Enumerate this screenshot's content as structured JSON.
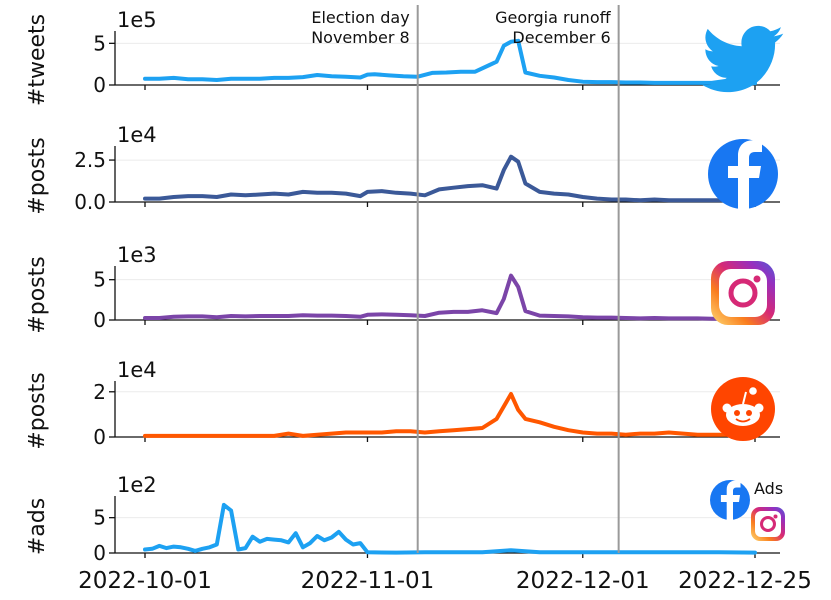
{
  "chart_data": {
    "type": "line",
    "x_range": [
      "2022-10-01",
      "2022-12-25"
    ],
    "x_ticks": [
      "2022-10-01",
      "2022-11-01",
      "2022-12-01",
      "2022-12-25"
    ],
    "events": [
      {
        "date": "2022-11-08",
        "label_line1": "Election day",
        "label_line2": "November 8",
        "label_align": "right"
      },
      {
        "date": "2022-12-06",
        "label_line1": "Georgia runoff",
        "label_line2": "December 6",
        "label_align": "right"
      }
    ],
    "line_color_default": "#1DA1F2",
    "panels": [
      {
        "id": "twitter",
        "ylabel": "#tweets",
        "multiplier": "1e5",
        "ylim": [
          0,
          6
        ],
        "yticks": [
          0,
          5
        ],
        "yticks_labels": [
          "0",
          "5"
        ],
        "color": "#1DA1F2",
        "icon": "twitter-bird-icon",
        "points": [
          [
            "2022-10-01",
            0.75
          ],
          [
            "2022-10-03",
            0.75
          ],
          [
            "2022-10-05",
            0.85
          ],
          [
            "2022-10-07",
            0.7
          ],
          [
            "2022-10-09",
            0.7
          ],
          [
            "2022-10-11",
            0.6
          ],
          [
            "2022-10-13",
            0.75
          ],
          [
            "2022-10-15",
            0.75
          ],
          [
            "2022-10-17",
            0.75
          ],
          [
            "2022-10-19",
            0.85
          ],
          [
            "2022-10-21",
            0.85
          ],
          [
            "2022-10-23",
            0.95
          ],
          [
            "2022-10-25",
            1.2
          ],
          [
            "2022-10-27",
            1.05
          ],
          [
            "2022-10-29",
            1.0
          ],
          [
            "2022-10-31",
            0.9
          ],
          [
            "2022-11-01",
            1.25
          ],
          [
            "2022-11-02",
            1.3
          ],
          [
            "2022-11-04",
            1.15
          ],
          [
            "2022-11-06",
            1.05
          ],
          [
            "2022-11-08",
            1.0
          ],
          [
            "2022-11-10",
            1.45
          ],
          [
            "2022-11-12",
            1.5
          ],
          [
            "2022-11-14",
            1.6
          ],
          [
            "2022-11-16",
            1.6
          ],
          [
            "2022-11-18",
            2.4
          ],
          [
            "2022-11-19",
            2.8
          ],
          [
            "2022-11-20",
            4.7
          ],
          [
            "2022-11-21",
            5.2
          ],
          [
            "2022-11-22",
            5.3
          ],
          [
            "2022-11-23",
            1.5
          ],
          [
            "2022-11-25",
            1.1
          ],
          [
            "2022-11-27",
            0.9
          ],
          [
            "2022-11-29",
            0.6
          ],
          [
            "2022-12-01",
            0.4
          ],
          [
            "2022-12-03",
            0.35
          ],
          [
            "2022-12-05",
            0.35
          ],
          [
            "2022-12-07",
            0.3
          ],
          [
            "2022-12-09",
            0.3
          ],
          [
            "2022-12-11",
            0.25
          ],
          [
            "2022-12-13",
            0.25
          ],
          [
            "2022-12-15",
            0.25
          ],
          [
            "2022-12-17",
            0.25
          ],
          [
            "2022-12-19",
            0.25
          ],
          [
            "2022-12-21",
            0.5
          ],
          [
            "2022-12-23",
            0.25
          ],
          [
            "2022-12-25",
            0.2
          ]
        ]
      },
      {
        "id": "facebook",
        "ylabel": "#posts",
        "multiplier": "1e4",
        "ylim": [
          0,
          3.1
        ],
        "yticks": [
          0,
          2.5
        ],
        "yticks_labels": [
          "0.0",
          "2.5"
        ],
        "color": "#3b5998",
        "icon": "facebook-icon",
        "points": [
          [
            "2022-10-01",
            0.2
          ],
          [
            "2022-10-03",
            0.2
          ],
          [
            "2022-10-05",
            0.3
          ],
          [
            "2022-10-07",
            0.35
          ],
          [
            "2022-10-09",
            0.35
          ],
          [
            "2022-10-11",
            0.3
          ],
          [
            "2022-10-13",
            0.45
          ],
          [
            "2022-10-15",
            0.4
          ],
          [
            "2022-10-17",
            0.45
          ],
          [
            "2022-10-19",
            0.5
          ],
          [
            "2022-10-21",
            0.45
          ],
          [
            "2022-10-23",
            0.6
          ],
          [
            "2022-10-25",
            0.55
          ],
          [
            "2022-10-27",
            0.55
          ],
          [
            "2022-10-29",
            0.5
          ],
          [
            "2022-10-31",
            0.35
          ],
          [
            "2022-11-01",
            0.6
          ],
          [
            "2022-11-03",
            0.65
          ],
          [
            "2022-11-05",
            0.55
          ],
          [
            "2022-11-07",
            0.5
          ],
          [
            "2022-11-09",
            0.4
          ],
          [
            "2022-11-11",
            0.75
          ],
          [
            "2022-11-13",
            0.85
          ],
          [
            "2022-11-15",
            0.95
          ],
          [
            "2022-11-17",
            1.0
          ],
          [
            "2022-11-19",
            0.8
          ],
          [
            "2022-11-20",
            1.9
          ],
          [
            "2022-11-21",
            2.7
          ],
          [
            "2022-11-22",
            2.4
          ],
          [
            "2022-11-23",
            1.1
          ],
          [
            "2022-11-25",
            0.6
          ],
          [
            "2022-11-27",
            0.5
          ],
          [
            "2022-11-29",
            0.45
          ],
          [
            "2022-12-01",
            0.3
          ],
          [
            "2022-12-03",
            0.2
          ],
          [
            "2022-12-05",
            0.15
          ],
          [
            "2022-12-07",
            0.15
          ],
          [
            "2022-12-09",
            0.1
          ],
          [
            "2022-12-11",
            0.15
          ],
          [
            "2022-12-13",
            0.1
          ],
          [
            "2022-12-15",
            0.1
          ],
          [
            "2022-12-17",
            0.1
          ],
          [
            "2022-12-19",
            0.1
          ],
          [
            "2022-12-21",
            0.1
          ],
          [
            "2022-12-23",
            0.1
          ],
          [
            "2022-12-25",
            0.05
          ]
        ]
      },
      {
        "id": "instagram",
        "ylabel": "#posts",
        "multiplier": "1e3",
        "ylim": [
          0,
          6.2
        ],
        "yticks": [
          0,
          5
        ],
        "yticks_labels": [
          "0",
          "5"
        ],
        "color": "#7b45a8",
        "icon": "instagram-icon",
        "points": [
          [
            "2022-10-01",
            0.25
          ],
          [
            "2022-10-03",
            0.25
          ],
          [
            "2022-10-05",
            0.4
          ],
          [
            "2022-10-07",
            0.45
          ],
          [
            "2022-10-09",
            0.45
          ],
          [
            "2022-10-11",
            0.35
          ],
          [
            "2022-10-13",
            0.5
          ],
          [
            "2022-10-15",
            0.45
          ],
          [
            "2022-10-17",
            0.5
          ],
          [
            "2022-10-19",
            0.5
          ],
          [
            "2022-10-21",
            0.5
          ],
          [
            "2022-10-23",
            0.6
          ],
          [
            "2022-10-25",
            0.55
          ],
          [
            "2022-10-27",
            0.55
          ],
          [
            "2022-10-29",
            0.5
          ],
          [
            "2022-10-31",
            0.4
          ],
          [
            "2022-11-01",
            0.65
          ],
          [
            "2022-11-03",
            0.7
          ],
          [
            "2022-11-05",
            0.65
          ],
          [
            "2022-11-07",
            0.6
          ],
          [
            "2022-11-09",
            0.5
          ],
          [
            "2022-11-11",
            0.9
          ],
          [
            "2022-11-13",
            1.0
          ],
          [
            "2022-11-15",
            1.0
          ],
          [
            "2022-11-17",
            1.2
          ],
          [
            "2022-11-19",
            0.85
          ],
          [
            "2022-11-20",
            2.6
          ],
          [
            "2022-11-21",
            5.5
          ],
          [
            "2022-11-22",
            4.1
          ],
          [
            "2022-11-23",
            1.1
          ],
          [
            "2022-11-25",
            0.55
          ],
          [
            "2022-11-27",
            0.5
          ],
          [
            "2022-11-29",
            0.45
          ],
          [
            "2022-12-01",
            0.35
          ],
          [
            "2022-12-03",
            0.3
          ],
          [
            "2022-12-05",
            0.3
          ],
          [
            "2022-12-07",
            0.25
          ],
          [
            "2022-12-09",
            0.2
          ],
          [
            "2022-12-11",
            0.25
          ],
          [
            "2022-12-13",
            0.2
          ],
          [
            "2022-12-15",
            0.2
          ],
          [
            "2022-12-17",
            0.2
          ],
          [
            "2022-12-19",
            0.15
          ],
          [
            "2022-12-21",
            0.15
          ],
          [
            "2022-12-23",
            0.15
          ],
          [
            "2022-12-25",
            0.1
          ]
        ]
      },
      {
        "id": "reddit",
        "ylabel": "#posts",
        "multiplier": "1e4",
        "ylim": [
          0,
          2.3
        ],
        "yticks": [
          0,
          2
        ],
        "yticks_labels": [
          "0",
          "2"
        ],
        "color": "#ff5700",
        "icon": "reddit-icon",
        "points": [
          [
            "2022-10-01",
            0.05
          ],
          [
            "2022-10-03",
            0.05
          ],
          [
            "2022-10-05",
            0.05
          ],
          [
            "2022-10-07",
            0.05
          ],
          [
            "2022-10-09",
            0.05
          ],
          [
            "2022-10-11",
            0.05
          ],
          [
            "2022-10-13",
            0.05
          ],
          [
            "2022-10-15",
            0.05
          ],
          [
            "2022-10-17",
            0.05
          ],
          [
            "2022-10-19",
            0.05
          ],
          [
            "2022-10-21",
            0.15
          ],
          [
            "2022-10-23",
            0.05
          ],
          [
            "2022-10-25",
            0.1
          ],
          [
            "2022-10-27",
            0.15
          ],
          [
            "2022-10-29",
            0.2
          ],
          [
            "2022-10-31",
            0.2
          ],
          [
            "2022-11-01",
            0.2
          ],
          [
            "2022-11-03",
            0.2
          ],
          [
            "2022-11-05",
            0.25
          ],
          [
            "2022-11-07",
            0.25
          ],
          [
            "2022-11-09",
            0.2
          ],
          [
            "2022-11-11",
            0.25
          ],
          [
            "2022-11-13",
            0.3
          ],
          [
            "2022-11-15",
            0.35
          ],
          [
            "2022-11-17",
            0.4
          ],
          [
            "2022-11-19",
            0.8
          ],
          [
            "2022-11-21",
            1.9
          ],
          [
            "2022-11-22",
            1.2
          ],
          [
            "2022-11-23",
            0.8
          ],
          [
            "2022-11-25",
            0.65
          ],
          [
            "2022-11-27",
            0.45
          ],
          [
            "2022-11-29",
            0.3
          ],
          [
            "2022-12-01",
            0.2
          ],
          [
            "2022-12-03",
            0.15
          ],
          [
            "2022-12-05",
            0.15
          ],
          [
            "2022-12-07",
            0.1
          ],
          [
            "2022-12-09",
            0.15
          ],
          [
            "2022-12-11",
            0.15
          ],
          [
            "2022-12-13",
            0.2
          ],
          [
            "2022-12-15",
            0.15
          ],
          [
            "2022-12-17",
            0.1
          ],
          [
            "2022-12-19",
            0.1
          ],
          [
            "2022-12-21",
            0.1
          ],
          [
            "2022-12-23",
            0.05
          ],
          [
            "2022-12-25",
            0.05
          ]
        ]
      },
      {
        "id": "ads",
        "ylabel": "#ads",
        "multiplier": "1e2",
        "ylim": [
          0,
          7.5
        ],
        "yticks": [
          0,
          5
        ],
        "yticks_labels": [
          "0",
          "5"
        ],
        "color": "#1DA1F2",
        "icon": "facebook-instagram-ads-icon",
        "icon_text": "Ads",
        "points": [
          [
            "2022-10-01",
            0.5
          ],
          [
            "2022-10-02",
            0.6
          ],
          [
            "2022-10-03",
            1.0
          ],
          [
            "2022-10-04",
            0.7
          ],
          [
            "2022-10-05",
            0.9
          ],
          [
            "2022-10-06",
            0.8
          ],
          [
            "2022-10-07",
            0.6
          ],
          [
            "2022-10-08",
            0.3
          ],
          [
            "2022-10-09",
            0.6
          ],
          [
            "2022-10-10",
            0.8
          ],
          [
            "2022-10-11",
            1.2
          ],
          [
            "2022-10-12",
            6.8
          ],
          [
            "2022-10-13",
            6.0
          ],
          [
            "2022-10-14",
            0.5
          ],
          [
            "2022-10-15",
            0.7
          ],
          [
            "2022-10-16",
            2.3
          ],
          [
            "2022-10-17",
            1.6
          ],
          [
            "2022-10-18",
            2.0
          ],
          [
            "2022-10-19",
            1.9
          ],
          [
            "2022-10-20",
            1.8
          ],
          [
            "2022-10-21",
            1.5
          ],
          [
            "2022-10-22",
            2.8
          ],
          [
            "2022-10-23",
            0.8
          ],
          [
            "2022-10-24",
            1.4
          ],
          [
            "2022-10-25",
            2.4
          ],
          [
            "2022-10-26",
            1.8
          ],
          [
            "2022-10-27",
            2.2
          ],
          [
            "2022-10-28",
            3.0
          ],
          [
            "2022-10-29",
            1.9
          ],
          [
            "2022-10-30",
            1.2
          ],
          [
            "2022-10-31",
            1.4
          ],
          [
            "2022-11-01",
            0.1
          ],
          [
            "2022-11-05",
            0.05
          ],
          [
            "2022-11-09",
            0.1
          ],
          [
            "2022-11-13",
            0.1
          ],
          [
            "2022-11-17",
            0.1
          ],
          [
            "2022-11-21",
            0.4
          ],
          [
            "2022-11-25",
            0.1
          ],
          [
            "2022-12-01",
            0.1
          ],
          [
            "2022-12-05",
            0.1
          ],
          [
            "2022-12-10",
            0.1
          ],
          [
            "2022-12-15",
            0.1
          ],
          [
            "2022-12-20",
            0.1
          ],
          [
            "2022-12-25",
            0.05
          ]
        ]
      }
    ]
  }
}
